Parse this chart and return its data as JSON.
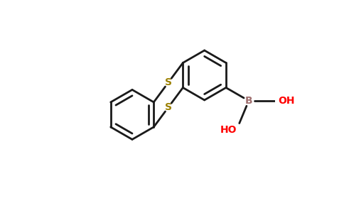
{
  "background_color": "#ffffff",
  "bond_color": "#1a1a1a",
  "sulfur_color": "#9b8000",
  "boron_color": "#a07070",
  "oxygen_color": "#ff0000",
  "bond_width": 2.0,
  "figsize": [
    4.84,
    3.0
  ],
  "dpi": 100,
  "xlim": [
    -1.0,
    1.1
  ],
  "ylim": [
    -0.75,
    1.0
  ]
}
